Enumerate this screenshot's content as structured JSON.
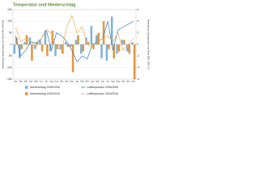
{
  "chart_data": {
    "type": "bar",
    "title": "Temperatur und Niederschlag",
    "y_label": "Abweichung Niederschlag vom Mittel 1961-1990 [%]",
    "y2_label": "Abweichung Lufttemperatur vom Mittel 1961-1990 [°C]",
    "categories": [
      "Jan",
      "Feb",
      "Mrz",
      "Apr",
      "Mai",
      "Jun",
      "Jul",
      "Aug",
      "Sep",
      "Okt",
      "Nov",
      "Dez",
      "Jan",
      "Feb",
      "Mrz",
      "Apr",
      "Mai",
      "Jun",
      "Jul",
      "Aug",
      "Sep",
      "Okt",
      "Nov",
      "Dez"
    ],
    "ylim": [
      -150,
      150
    ],
    "yticks": [
      -150,
      -100,
      -50,
      0,
      50,
      100,
      150
    ],
    "y2lim": [
      -6,
      6
    ],
    "y2ticks": [
      -6,
      -4,
      -2,
      0,
      2,
      4,
      6
    ],
    "grid": true,
    "series": [
      {
        "name": "Niederschlag 2005/2006",
        "color": "#7fb3dc",
        "values": [
          -40,
          -60,
          10,
          30,
          -20,
          20,
          60,
          -30,
          -50,
          -20,
          10,
          -10,
          20,
          -40,
          30,
          80,
          40,
          -60,
          -70,
          120,
          -40,
          20,
          -30,
          10
        ]
      },
      {
        "name": "Niederschlag 2015/2016",
        "color": "#e3963e",
        "values": [
          30,
          -20,
          40,
          -70,
          10,
          -30,
          -50,
          60,
          -20,
          -40,
          -10,
          -120,
          40,
          -30,
          10,
          -20,
          50,
          100,
          -20,
          -60,
          -30,
          20,
          -40,
          -150
        ]
      },
      {
        "name": "Lufttemperatur 2005/2006",
        "color": "#2f7fc1",
        "type": "line",
        "axis": "y2",
        "values": [
          1.5,
          -2,
          -1,
          0.5,
          0.2,
          1,
          2.5,
          -1,
          2,
          1.5,
          0.5,
          -1,
          -3,
          -2,
          -2.5,
          0,
          0.5,
          1,
          4,
          -1,
          2.5,
          3,
          3.5,
          4
        ]
      },
      {
        "name": "Lufttemperatur 2015/2016",
        "color": "#f0a850",
        "type": "line",
        "axis": "y2",
        "values": [
          3,
          0.5,
          1,
          0.5,
          -0.5,
          1,
          2.5,
          2,
          -0.5,
          -1,
          3,
          5,
          2,
          3,
          0,
          -0.5,
          0.5,
          1,
          1.5,
          0.5,
          2,
          -1,
          0,
          1
        ]
      }
    ]
  }
}
